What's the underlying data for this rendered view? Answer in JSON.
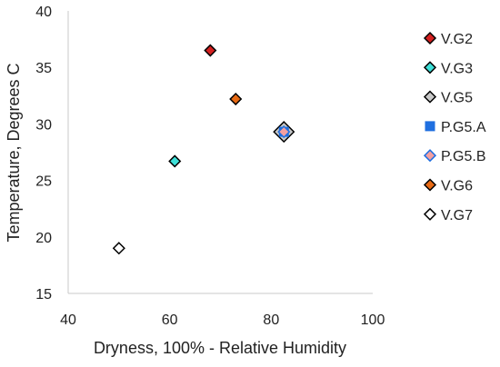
{
  "chart_data": {
    "type": "scatter",
    "title": "",
    "xlabel": "Dryness, 100% - Relative Humidity",
    "ylabel": "Temperature, Degrees C",
    "xlim": [
      40,
      100
    ],
    "ylim": [
      15,
      40
    ],
    "xticks": [
      "40",
      "60",
      "80",
      "100"
    ],
    "yticks": [
      "15",
      "20",
      "25",
      "30",
      "35",
      "40"
    ],
    "grid": false,
    "legend_position": "right",
    "series": [
      {
        "name": "V.G2",
        "color": "#d42020",
        "edge": "#000000",
        "marker": "diamond",
        "size": "small",
        "points": [
          {
            "x": 68,
            "y": 36.5
          }
        ]
      },
      {
        "name": "V.G3",
        "color": "#3ee0d8",
        "edge": "#000000",
        "marker": "diamond",
        "size": "small",
        "points": [
          {
            "x": 61,
            "y": 26.7
          }
        ]
      },
      {
        "name": "V.G5",
        "color": "#c8c8c8",
        "edge": "#000000",
        "marker": "diamond",
        "size": "large",
        "points": [
          {
            "x": 82.5,
            "y": 29.3
          }
        ]
      },
      {
        "name": "P.G5.A",
        "color": "#1f6fe0",
        "edge": "#1f6fe0",
        "marker": "square",
        "size": "small",
        "points": [
          {
            "x": 82.5,
            "y": 29.3
          }
        ]
      },
      {
        "name": "P.G5.B",
        "color": "#f4a0a0",
        "edge": "#1f6fe0",
        "marker": "diamond",
        "size": "small",
        "points": [
          {
            "x": 82.5,
            "y": 29.3
          }
        ]
      },
      {
        "name": "V.G6",
        "color": "#e86a14",
        "edge": "#000000",
        "marker": "diamond",
        "size": "small",
        "points": [
          {
            "x": 73,
            "y": 32.2
          }
        ]
      },
      {
        "name": "V.G7",
        "color": "#ffffff",
        "edge": "#000000",
        "marker": "diamond",
        "size": "small",
        "points": [
          {
            "x": 50,
            "y": 19
          }
        ]
      }
    ]
  }
}
